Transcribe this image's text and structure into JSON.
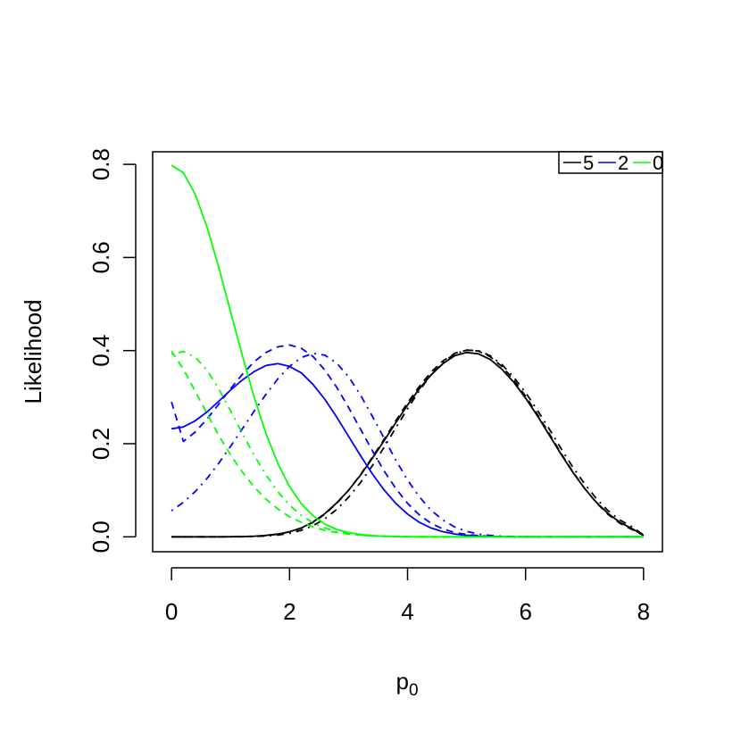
{
  "chart_data": {
    "type": "line",
    "xlabel": "p",
    "xlabel_subscript": "0",
    "ylabel": "Likelihood",
    "xlim": [
      -0.32,
      8.32
    ],
    "ylim": [
      -0.032,
      0.827
    ],
    "xticks": [
      0,
      2,
      4,
      6,
      8
    ],
    "xtick_labels": [
      "0",
      "2",
      "4",
      "6",
      "8"
    ],
    "yticks": [
      0.0,
      0.2,
      0.4,
      0.6,
      0.8
    ],
    "ytick_labels": [
      "0.0",
      "0.2",
      "0.4",
      "0.6",
      "0.8"
    ],
    "grid": false,
    "legend_position": "top-right",
    "legend": [
      {
        "label": "5",
        "color": "#000000"
      },
      {
        "label": "2",
        "color": "#0000FF"
      },
      {
        "label": "0",
        "color": "#00FF00"
      }
    ],
    "x": [
      0,
      0.2,
      0.4,
      0.6,
      0.8,
      1.0,
      1.2,
      1.4,
      1.6,
      1.8,
      2.0,
      2.2,
      2.4,
      2.6,
      2.8,
      3.0,
      3.2,
      3.4,
      3.6,
      3.8,
      4.0,
      4.2,
      4.4,
      4.6,
      4.8,
      5.0,
      5.2,
      5.4,
      5.6,
      5.8,
      6.0,
      6.2,
      6.4,
      6.6,
      6.8,
      7.0,
      7.2,
      7.4,
      7.6,
      7.8,
      8.0
    ],
    "series": [
      {
        "color": "#000000",
        "dash": "solid",
        "values": [
          0.0,
          0.0,
          0.0,
          0.0,
          0.0,
          0.0002,
          0.0006,
          0.0014,
          0.003,
          0.006,
          0.011,
          0.019,
          0.032,
          0.05,
          0.073,
          0.1,
          0.132,
          0.168,
          0.206,
          0.245,
          0.283,
          0.318,
          0.348,
          0.372,
          0.389,
          0.396,
          0.393,
          0.381,
          0.36,
          0.332,
          0.298,
          0.26,
          0.219,
          0.178,
          0.139,
          0.104,
          0.074,
          0.05,
          0.031,
          0.018,
          0.003
        ]
      },
      {
        "color": "#000000",
        "dash": "dashed",
        "values": [
          0.0,
          0.0,
          0.0,
          0.0,
          0.0,
          0.0002,
          0.0005,
          0.0012,
          0.0027,
          0.0055,
          0.0105,
          0.0185,
          0.031,
          0.049,
          0.072,
          0.1,
          0.133,
          0.17,
          0.209,
          0.249,
          0.288,
          0.323,
          0.354,
          0.378,
          0.394,
          0.401,
          0.399,
          0.387,
          0.366,
          0.337,
          0.302,
          0.263,
          0.222,
          0.18,
          0.14,
          0.104,
          0.073,
          0.048,
          0.029,
          0.016,
          0.003
        ]
      },
      {
        "color": "#000000",
        "dash": "dotdash",
        "values": [
          0.0,
          0.0,
          0.0,
          0.0,
          0.0,
          0.0001,
          0.0003,
          0.0008,
          0.0018,
          0.0038,
          0.0075,
          0.014,
          0.024,
          0.039,
          0.059,
          0.085,
          0.116,
          0.152,
          0.192,
          0.234,
          0.275,
          0.314,
          0.348,
          0.375,
          0.393,
          0.401,
          0.4,
          0.389,
          0.37,
          0.343,
          0.31,
          0.272,
          0.232,
          0.19,
          0.15,
          0.114,
          0.082,
          0.056,
          0.036,
          0.022,
          0.004
        ]
      },
      {
        "color": "#0000FF",
        "dash": "solid",
        "values": [
          0.232,
          0.236,
          0.249,
          0.268,
          0.291,
          0.315,
          0.337,
          0.355,
          0.368,
          0.372,
          0.366,
          0.352,
          0.327,
          0.295,
          0.257,
          0.216,
          0.175,
          0.136,
          0.101,
          0.072,
          0.049,
          0.031,
          0.019,
          0.011,
          0.006,
          0.003,
          0.0015,
          0.0007,
          0.0003,
          0.0001,
          0.0,
          0.0,
          0.0,
          0.0,
          0.0,
          0.0,
          0.0,
          0.0,
          0.0,
          0.0,
          0.0
        ]
      },
      {
        "color": "#0000FF",
        "dash": "dashed",
        "values": [
          0.29,
          0.205,
          0.225,
          0.253,
          0.285,
          0.318,
          0.349,
          0.376,
          0.396,
          0.408,
          0.412,
          0.405,
          0.387,
          0.358,
          0.321,
          0.278,
          0.232,
          0.186,
          0.142,
          0.104,
          0.072,
          0.047,
          0.029,
          0.017,
          0.009,
          0.005,
          0.0025,
          0.0012,
          0.0005,
          0.0002,
          0.0001,
          0.0,
          0.0,
          0.0,
          0.0,
          0.0,
          0.0,
          0.0,
          0.0,
          0.0,
          0.0
        ]
      },
      {
        "color": "#0000FF",
        "dash": "dotdash",
        "values": [
          0.056,
          0.074,
          0.097,
          0.125,
          0.158,
          0.194,
          0.232,
          0.27,
          0.306,
          0.339,
          0.366,
          0.385,
          0.394,
          0.39,
          0.373,
          0.344,
          0.305,
          0.26,
          0.212,
          0.165,
          0.122,
          0.086,
          0.057,
          0.036,
          0.021,
          0.012,
          0.006,
          0.003,
          0.0014,
          0.0006,
          0.0002,
          0.0001,
          0.0,
          0.0,
          0.0,
          0.0,
          0.0,
          0.0,
          0.0,
          0.0,
          0.0
        ]
      },
      {
        "color": "#00FF00",
        "dash": "solid",
        "values": [
          0.798,
          0.782,
          0.736,
          0.666,
          0.579,
          0.484,
          0.389,
          0.3,
          0.222,
          0.158,
          0.108,
          0.071,
          0.045,
          0.027,
          0.016,
          0.009,
          0.005,
          0.0025,
          0.0012,
          0.0006,
          0.0003,
          0.0001,
          0.0,
          0.0,
          0.0,
          0.0,
          0.0,
          0.0,
          0.0,
          0.0,
          0.0,
          0.0,
          0.0,
          0.0,
          0.0,
          0.0,
          0.0,
          0.0,
          0.0,
          0.0,
          0.0
        ]
      },
      {
        "color": "#00FF00",
        "dash": "dashed",
        "values": [
          0.399,
          0.36,
          0.313,
          0.265,
          0.218,
          0.176,
          0.139,
          0.107,
          0.081,
          0.06,
          0.043,
          0.031,
          0.021,
          0.014,
          0.009,
          0.006,
          0.004,
          0.0024,
          0.0015,
          0.0009,
          0.0005,
          0.0003,
          0.0001,
          0.0,
          0.0,
          0.0,
          0.0,
          0.0,
          0.0,
          0.0,
          0.0,
          0.0,
          0.0,
          0.0,
          0.0,
          0.0,
          0.0,
          0.0,
          0.0,
          0.0,
          0.0
        ]
      },
      {
        "color": "#00FF00",
        "dash": "dotdash",
        "values": [
          0.392,
          0.398,
          0.386,
          0.358,
          0.318,
          0.271,
          0.222,
          0.175,
          0.133,
          0.097,
          0.068,
          0.046,
          0.03,
          0.019,
          0.011,
          0.0065,
          0.0036,
          0.0019,
          0.001,
          0.0005,
          0.0002,
          0.0001,
          0.0,
          0.0,
          0.0,
          0.0,
          0.0,
          0.0,
          0.0,
          0.0,
          0.0,
          0.0,
          0.0,
          0.0,
          0.0,
          0.0,
          0.0,
          0.0,
          0.0,
          0.0,
          0.0
        ]
      }
    ]
  }
}
